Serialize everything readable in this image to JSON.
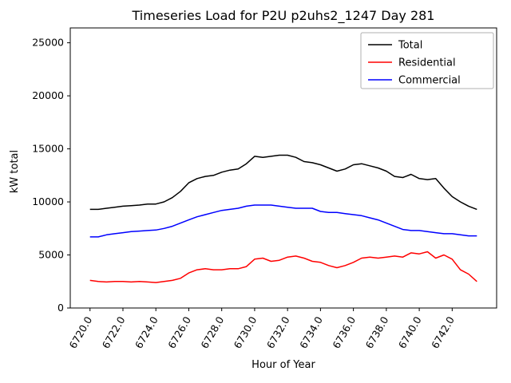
{
  "chart_data": {
    "type": "line",
    "title": "Timeseries Load for P2U p2uhs2_1247  Day 281",
    "xlabel": "Hour of Year",
    "ylabel": "kW total",
    "xlim": [
      6718.8,
      6744.7
    ],
    "ylim": [
      0,
      26400
    ],
    "grid": false,
    "legend_position": "upper right",
    "xticks": [
      6720,
      6722,
      6724,
      6726,
      6728,
      6730,
      6732,
      6734,
      6736,
      6738,
      6740,
      6742
    ],
    "xtick_labels": [
      "6720.0",
      "6722.0",
      "6724.0",
      "6726.0",
      "6728.0",
      "6730.0",
      "6732.0",
      "6734.0",
      "6736.0",
      "6738.0",
      "6740.0",
      "6742.0"
    ],
    "yticks": [
      0,
      5000,
      10000,
      15000,
      20000,
      25000
    ],
    "ytick_labels": [
      "0",
      "5000",
      "10000",
      "15000",
      "20000",
      "25000"
    ],
    "x": [
      6720.0,
      6720.5,
      6721.0,
      6721.5,
      6722.0,
      6722.5,
      6723.0,
      6723.5,
      6724.0,
      6724.5,
      6725.0,
      6725.5,
      6726.0,
      6726.5,
      6727.0,
      6727.5,
      6728.0,
      6728.5,
      6729.0,
      6729.5,
      6730.0,
      6730.5,
      6731.0,
      6731.5,
      6732.0,
      6732.5,
      6733.0,
      6733.5,
      6734.0,
      6734.5,
      6735.0,
      6735.5,
      6736.0,
      6736.5,
      6737.0,
      6737.5,
      6738.0,
      6738.5,
      6739.0,
      6739.5,
      6740.0,
      6740.5,
      6741.0,
      6741.5,
      6742.0,
      6742.5,
      6743.0,
      6743.5
    ],
    "series": [
      {
        "name": "Total",
        "color": "#000000",
        "values": [
          9300,
          9300,
          9400,
          9500,
          9600,
          9650,
          9700,
          9800,
          9800,
          10000,
          10400,
          11000,
          11800,
          12200,
          12400,
          12500,
          12800,
          13000,
          13100,
          13600,
          14300,
          14200,
          14300,
          14400,
          14400,
          14200,
          13800,
          13700,
          13500,
          13200,
          12900,
          13100,
          13500,
          13600,
          13400,
          13200,
          12900,
          12400,
          12300,
          12600,
          12200,
          12100,
          12200,
          11300,
          10500,
          10000,
          9600,
          9300
        ]
      },
      {
        "name": "Residential",
        "color": "#ff0000",
        "values": [
          2600,
          2500,
          2450,
          2500,
          2500,
          2450,
          2500,
          2450,
          2400,
          2500,
          2600,
          2800,
          3300,
          3600,
          3700,
          3600,
          3600,
          3700,
          3700,
          3900,
          4600,
          4700,
          4400,
          4500,
          4800,
          4900,
          4700,
          4400,
          4300,
          4000,
          3800,
          4000,
          4300,
          4700,
          4800,
          4700,
          4800,
          4900,
          4800,
          5200,
          5100,
          5300,
          4700,
          5000,
          4600,
          3600,
          3200,
          2500
        ]
      },
      {
        "name": "Commercial",
        "color": "#0000ff",
        "values": [
          6700,
          6700,
          6900,
          7000,
          7100,
          7200,
          7250,
          7300,
          7350,
          7500,
          7700,
          8000,
          8300,
          8600,
          8800,
          9000,
          9200,
          9300,
          9400,
          9600,
          9700,
          9700,
          9700,
          9600,
          9500,
          9400,
          9400,
          9400,
          9100,
          9000,
          9000,
          8900,
          8800,
          8700,
          8500,
          8300,
          8000,
          7700,
          7400,
          7300,
          7300,
          7200,
          7100,
          7000,
          7000,
          6900,
          6800,
          6800
        ]
      }
    ]
  }
}
